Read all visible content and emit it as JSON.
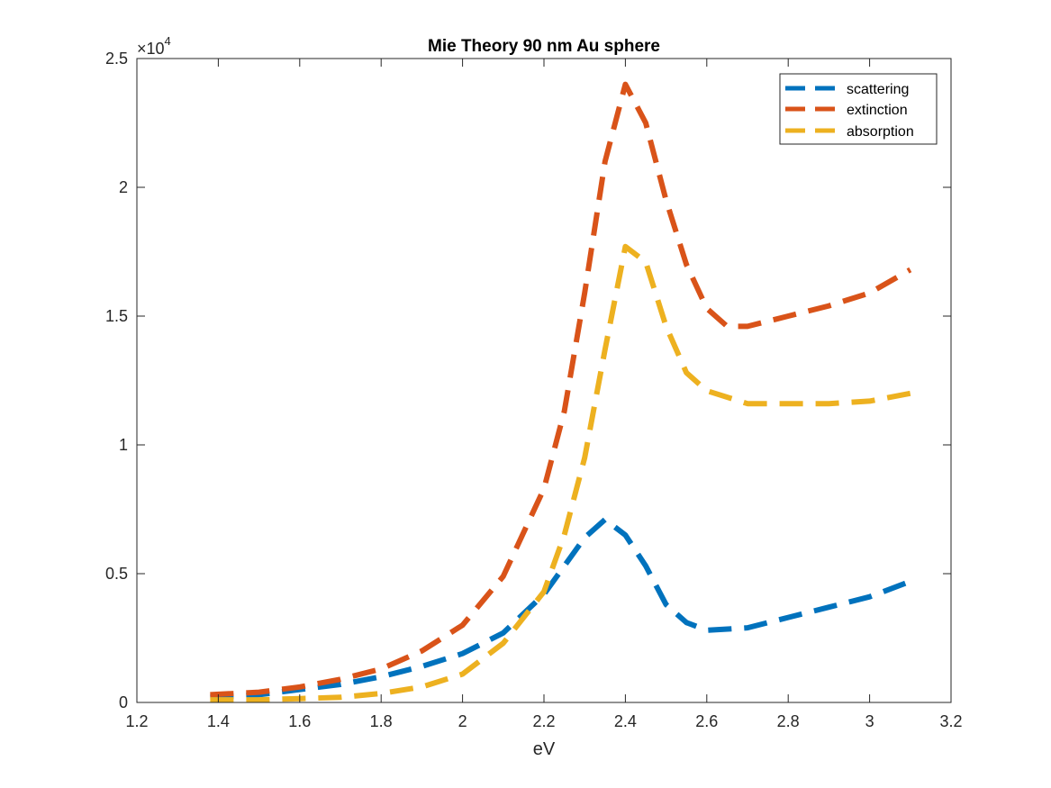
{
  "chart_data": {
    "type": "line",
    "title": "Mie Theory 90 nm Au sphere",
    "xlabel": "eV",
    "ylabel": "",
    "xlim": [
      1.2,
      3.2
    ],
    "ylim": [
      0,
      25000
    ],
    "xticks": [
      "1.2",
      "1.4",
      "1.6",
      "1.8",
      "2",
      "2.2",
      "2.4",
      "2.6",
      "2.8",
      "3",
      "3.2"
    ],
    "yticks": [
      "0",
      "0.5",
      "1",
      "1.5",
      "2",
      "2.5"
    ],
    "y_exponent_label": "×10",
    "y_exponent_power": "4",
    "grid": false,
    "legend_position": "top-right",
    "series": [
      {
        "name": "scattering",
        "color": "#0072BD",
        "x": [
          1.38,
          1.5,
          1.6,
          1.7,
          1.8,
          1.9,
          2.0,
          2.1,
          2.2,
          2.25,
          2.3,
          2.35,
          2.4,
          2.45,
          2.5,
          2.55,
          2.6,
          2.7,
          2.8,
          2.9,
          3.0,
          3.1
        ],
        "y": [
          200,
          300,
          500,
          700,
          1000,
          1400,
          1900,
          2700,
          4200,
          5300,
          6400,
          7100,
          6500,
          5300,
          3800,
          3100,
          2800,
          2900,
          3300,
          3700,
          4100,
          4700
        ]
      },
      {
        "name": "extinction",
        "color": "#D95319",
        "x": [
          1.38,
          1.5,
          1.6,
          1.7,
          1.8,
          1.9,
          2.0,
          2.1,
          2.2,
          2.25,
          2.3,
          2.35,
          2.4,
          2.45,
          2.5,
          2.55,
          2.6,
          2.65,
          2.7,
          2.8,
          2.9,
          3.0,
          3.1
        ],
        "y": [
          300,
          400,
          600,
          900,
          1300,
          2000,
          3000,
          4900,
          8300,
          11300,
          15900,
          21000,
          24000,
          22500,
          19500,
          17000,
          15300,
          14600,
          14600,
          15000,
          15400,
          15900,
          16800
        ]
      },
      {
        "name": "absorption",
        "color": "#EDB120",
        "x": [
          1.38,
          1.5,
          1.6,
          1.7,
          1.8,
          1.9,
          2.0,
          2.1,
          2.2,
          2.25,
          2.3,
          2.35,
          2.4,
          2.45,
          2.5,
          2.55,
          2.6,
          2.7,
          2.8,
          2.9,
          3.0,
          3.1
        ],
        "y": [
          100,
          100,
          150,
          200,
          350,
          600,
          1100,
          2300,
          4300,
          6500,
          9500,
          13700,
          17700,
          17100,
          14600,
          12800,
          12100,
          11600,
          11600,
          11600,
          11700,
          12000
        ]
      }
    ]
  }
}
